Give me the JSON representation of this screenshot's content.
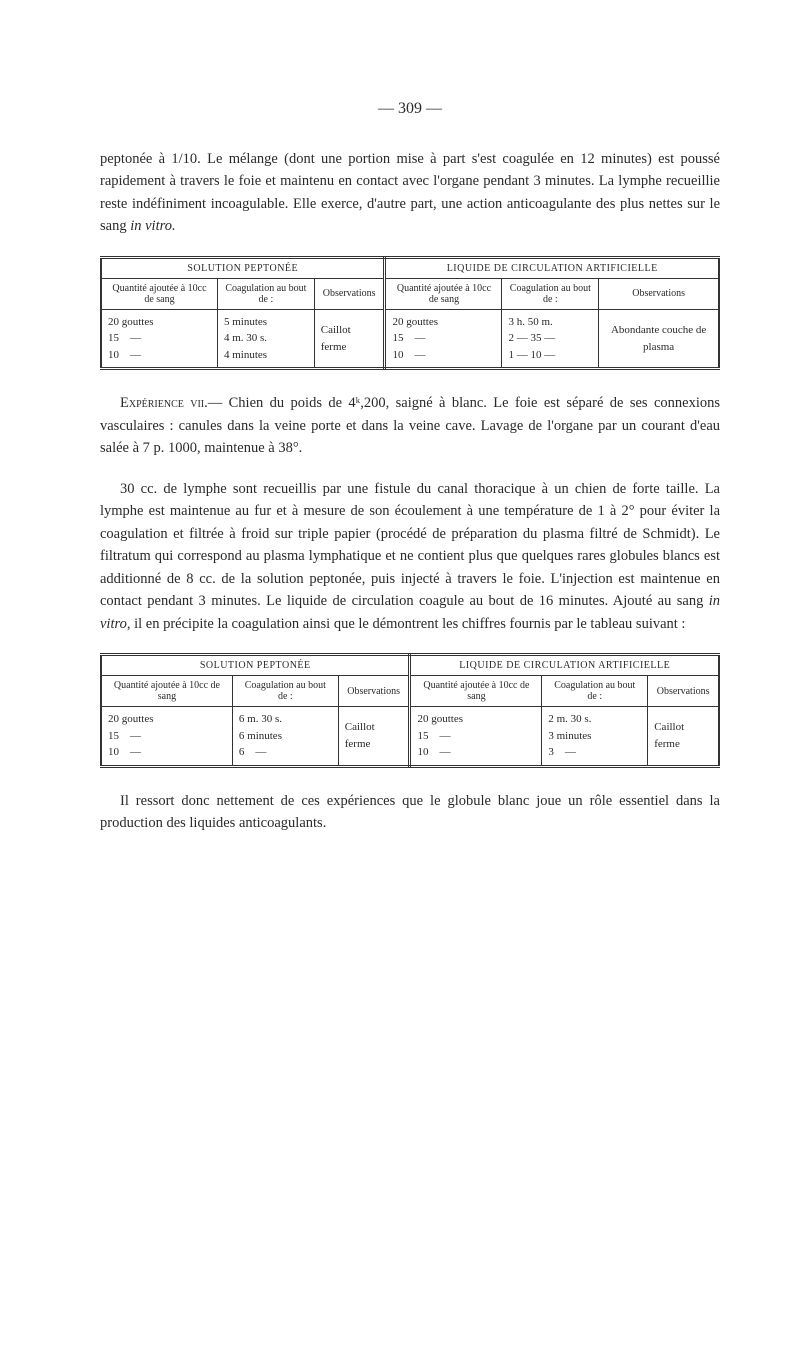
{
  "page_number": "— 309 —",
  "paragraphs": {
    "p1": "peptonée à 1/10. Le mélange (dont une portion mise à part s'est coagulée en 12 minutes) est poussé rapidement à travers le foie et maintenu en contact avec l'organe pendant 3 minutes. La lymphe recueillie reste indéfiniment incoagulable. Elle exerce, d'autre part, une action anticoagulante des plus nettes sur le sang ",
    "p1_italic": "in vitro.",
    "p2_smallcaps": "Expérience vii.",
    "p2_rest": "— Chien du poids de 4ᵏ,200, saigné à blanc. Le foie est séparé de ses connexions vasculaires : canules dans la veine porte et dans la veine cave. Lavage de l'organe par un courant d'eau salée à 7 p. 1000, maintenue à 38°.",
    "p3": "30 cc. de lymphe sont recueillis par une fistule du canal thoracique à un chien de forte taille. La lymphe est maintenue au fur et à mesure de son écoulement à une température de 1 à 2° pour éviter la coagulation et filtrée à froid sur triple papier (procédé de préparation du plasma filtré de Schmidt). Le filtratum qui correspond au plasma lymphatique et ne contient plus que quelques rares globules blancs est additionné de 8 cc. de la solution peptonée, puis injecté à travers le foie. L'injection est maintenue en contact pendant 3 minutes. Le liquide de circulation coagule au bout de 16 minutes. Ajouté au sang ",
    "p3_italic": "in vitro",
    "p3_rest": ", il en précipite la coagulation ainsi que le démontrent les chif­fres fournis par le tableau suivant :",
    "p4": "Il ressort donc nettement de ces expériences que le globule blanc joue un rôle essentiel dans la production des liquides anti­coagulants."
  },
  "table1": {
    "section_left": "SOLUTION PEPTONÉE",
    "section_right": "LIQUIDE DE CIRCULATION ARTIFICIELLE",
    "headers": {
      "h1": "Quantité ajoutée à 10cc de sang",
      "h2": "Coagulation au bout de :",
      "h3": "Observations",
      "h4": "Quantité ajoutée à 10cc de sang",
      "h5": "Coagulation au bout de :",
      "h6": "Observations"
    },
    "row": {
      "c1": "20 gouttes\n15    —\n10    —",
      "c2": "5 minutes\n4 m. 30 s.\n4 minutes",
      "c3": "Caillot ferme",
      "c4": "20 gouttes\n15    —\n10    —",
      "c5": "3 h. 50 m.\n2 — 35 —\n1 — 10 —",
      "c6": "Abondante couche de plasma"
    }
  },
  "table2": {
    "section_left": "SOLUTION PEPTONÉE",
    "section_right": "LIQUIDE DE CIRCULATION ARTIFICIELLE",
    "headers": {
      "h1": "Quantité ajoutée à 10cc de sang",
      "h2": "Coagulation au bout de :",
      "h3": "Observations",
      "h4": "Quantité ajoutée à 10cc de sang",
      "h5": "Coagulation au bout de :",
      "h6": "Observations"
    },
    "row": {
      "c1": "20 gouttes\n15    —\n10    —",
      "c2": "6 m. 30 s.\n6 minutes\n6    —",
      "c3": "Caillot ferme",
      "c4": "20 gouttes\n15    —\n10    —",
      "c5": "2 m. 30 s.\n3 minutes\n3    —",
      "c6": "Caillot ferme"
    }
  },
  "colors": {
    "text": "#2a2a2a",
    "border": "#333333",
    "background": "#ffffff"
  },
  "fonts": {
    "body_size": 14.5,
    "table_size": 11,
    "header_size": 10
  }
}
